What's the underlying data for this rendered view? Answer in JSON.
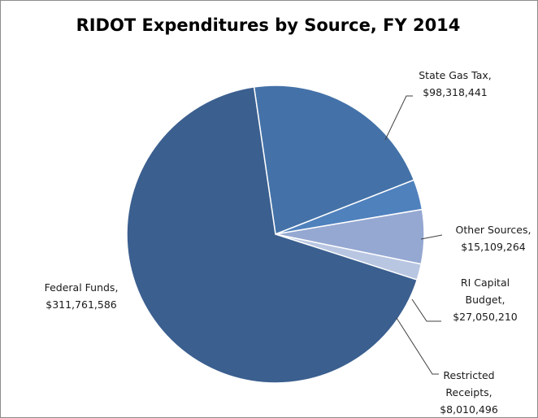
{
  "chart_data": {
    "type": "pie",
    "title": "RIDOT Expenditures by Source, FY 2014",
    "slices": [
      {
        "name": "State Gas Tax",
        "value": 98318441,
        "label_lines": [
          "State Gas Tax,",
          "$98,318,441"
        ],
        "color": "#4472a8"
      },
      {
        "name": "Other Sources",
        "value": 15109264,
        "label_lines": [
          "Other Sources,",
          "$15,109,264"
        ],
        "color": "#4f81bd"
      },
      {
        "name": "RI Capital Budget",
        "value": 27050210,
        "label_lines": [
          "RI Capital",
          "Budget,",
          "$27,050,210"
        ],
        "color": "#95a8d2"
      },
      {
        "name": "Restricted Receipts",
        "value": 8010496,
        "label_lines": [
          "Restricted",
          "Receipts,",
          "$8,010,496"
        ],
        "color": "#b9c6e2"
      },
      {
        "name": "Federal Funds",
        "value": 311761586,
        "label_lines": [
          "Federal Funds,",
          "$311,761,586"
        ],
        "color": "#3b5f8f"
      }
    ],
    "legend": "none",
    "data_labels": "outside with leader lines"
  }
}
